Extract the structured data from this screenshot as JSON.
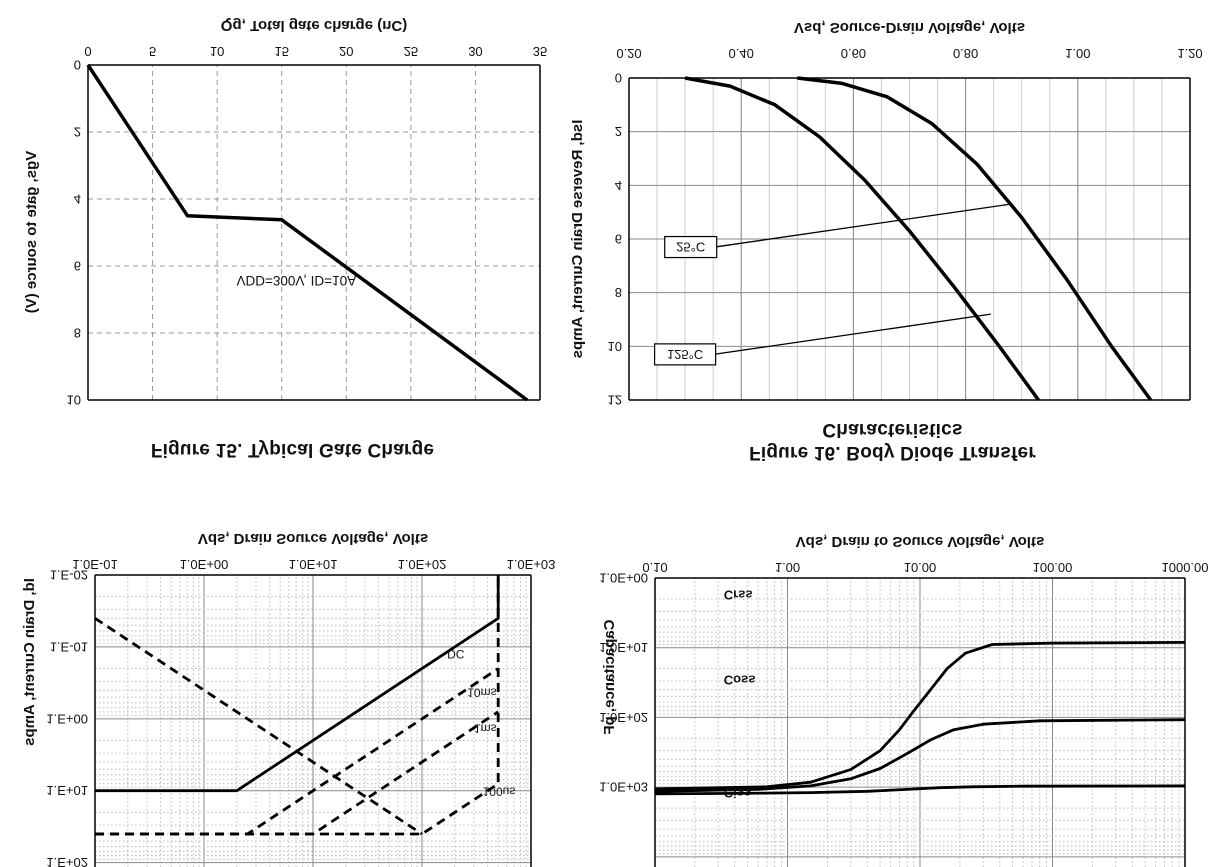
{
  "chart_data": [
    {
      "id": "soa",
      "type": "line",
      "xlabel": "Vds, Drain Source Voltage, Volts",
      "ylabel": "Id, Drain Current, Amps",
      "x_scale": "log",
      "y_scale": "log",
      "x_range": [
        0.1,
        1000
      ],
      "y_range": [
        0.01,
        115
      ],
      "x_ticks": [
        {
          "v": 0.1,
          "label": "1.0E-01"
        },
        {
          "v": 1,
          "label": "1.0E+00"
        },
        {
          "v": 10,
          "label": "1.0E+01"
        },
        {
          "v": 100,
          "label": "1.0E+02"
        },
        {
          "v": 1000,
          "label": "1.0E+03"
        }
      ],
      "y_ticks": [
        {
          "v": 0.01,
          "label": "1.E-02"
        },
        {
          "v": 0.1,
          "label": "1.E-01"
        },
        {
          "v": 1,
          "label": "1.E+00"
        },
        {
          "v": 10,
          "label": "1.E+01"
        },
        {
          "v": 100,
          "label": "1.E+02"
        }
      ],
      "clipped_top": true,
      "series": [
        {
          "name": "DC",
          "dash": false,
          "points": [
            [
              0.1,
              10
            ],
            [
              2,
              10
            ],
            [
              500,
              0.04
            ],
            [
              500,
              0.01
            ]
          ]
        },
        {
          "name": "10ms",
          "dash": true,
          "points": [
            [
              0.1,
              40
            ],
            [
              2.5,
              40
            ],
            [
              500,
              0.2
            ]
          ]
        },
        {
          "name": "1ms",
          "dash": true,
          "points": [
            [
              0.1,
              40
            ],
            [
              10,
              40
            ],
            [
              500,
              0.8
            ]
          ]
        },
        {
          "name": "100us",
          "dash": true,
          "points": [
            [
              0.1,
              40
            ],
            [
              100,
              40
            ],
            [
              500,
              8
            ],
            [
              500,
              0.01
            ]
          ]
        },
        {
          "name": "rdson-limit",
          "dash": true,
          "points": [
            [
              0.1,
              0.04
            ],
            [
              100,
              40
            ]
          ]
        }
      ],
      "labels": [
        {
          "text": "DC",
          "x": 170,
          "y": 0.11,
          "size": 12
        },
        {
          "text": "10ms",
          "x": 260,
          "y": 0.38,
          "size": 12
        },
        {
          "text": "1ms",
          "x": 300,
          "y": 1.2,
          "size": 12
        },
        {
          "text": "100us",
          "x": 360,
          "y": 9,
          "size": 12
        }
      ]
    },
    {
      "id": "cap",
      "type": "line",
      "xlabel": "Vds, Drain to Source Voltage, Volts",
      "ylabel": "Capacitance, pF",
      "x_scale": "log",
      "y_scale": "log",
      "x_range": [
        0.1,
        1000
      ],
      "y_range": [
        1,
        14000
      ],
      "x_ticks": [
        {
          "v": 0.1,
          "label": "0.10"
        },
        {
          "v": 1,
          "label": "1.00"
        },
        {
          "v": 10,
          "label": "10.00"
        },
        {
          "v": 100,
          "label": "100.00"
        },
        {
          "v": 1000,
          "label": "1000.00"
        }
      ],
      "y_ticks": [
        {
          "v": 1,
          "label": "1.0E+00"
        },
        {
          "v": 10,
          "label": "1.0E+01"
        },
        {
          "v": 100,
          "label": "1.0E+02"
        },
        {
          "v": 1000,
          "label": "1.0E+03"
        }
      ],
      "clipped_top": true,
      "series": [
        {
          "name": "Ciss",
          "dash": false,
          "points": [
            [
              0.1,
              1250
            ],
            [
              0.4,
              1230
            ],
            [
              1.5,
              1200
            ],
            [
              4,
              1150
            ],
            [
              8,
              1080
            ],
            [
              14,
              1020
            ],
            [
              25,
              990
            ],
            [
              60,
              970
            ],
            [
              1000,
              960
            ]
          ]
        },
        {
          "name": "Coss",
          "dash": false,
          "points": [
            [
              0.1,
              1150
            ],
            [
              0.6,
              1080
            ],
            [
              1.5,
              960
            ],
            [
              3,
              760
            ],
            [
              5,
              540
            ],
            [
              8,
              330
            ],
            [
              12,
              210
            ],
            [
              18,
              150
            ],
            [
              30,
              125
            ],
            [
              80,
              112
            ],
            [
              1000,
              108
            ]
          ]
        },
        {
          "name": "Crss",
          "dash": false,
          "points": [
            [
              0.1,
              1060
            ],
            [
              0.7,
              990
            ],
            [
              1.5,
              850
            ],
            [
              3,
              560
            ],
            [
              5,
              300
            ],
            [
              7,
              150
            ],
            [
              9,
              80
            ],
            [
              12,
              40
            ],
            [
              16,
              20
            ],
            [
              22,
              12
            ],
            [
              35,
              9
            ],
            [
              100,
              8.6
            ],
            [
              1000,
              8.4
            ]
          ]
        }
      ],
      "labels": [
        {
          "text": "Crss",
          "x": 0.33,
          "y": 1.5,
          "size": 13,
          "bold": true
        },
        {
          "text": "Coss",
          "x": 0.33,
          "y": 25,
          "size": 13,
          "bold": true
        },
        {
          "text": "Ciss",
          "x": 0.33,
          "y": 1050,
          "size": 13,
          "bold": true
        }
      ]
    },
    {
      "id": "gate",
      "type": "line",
      "caption": "Figure 15. Typical Gate Charge",
      "xlabel": "Qg, Total gate charge (nC)",
      "ylabel": "Vgs, gate to source (V)",
      "x_scale": "linear",
      "y_scale": "linear",
      "x_range": [
        0,
        35
      ],
      "y_range": [
        0,
        10
      ],
      "x_ticks": [
        {
          "v": 0,
          "label": "0"
        },
        {
          "v": 5,
          "label": "5"
        },
        {
          "v": 10,
          "label": "10"
        },
        {
          "v": 15,
          "label": "15"
        },
        {
          "v": 20,
          "label": "20"
        },
        {
          "v": 25,
          "label": "25"
        },
        {
          "v": 30,
          "label": "30"
        },
        {
          "v": 35,
          "label": "35"
        }
      ],
      "y_ticks": [
        {
          "v": 0,
          "label": "0"
        },
        {
          "v": 2,
          "label": "2"
        },
        {
          "v": 4,
          "label": "4"
        },
        {
          "v": 6,
          "label": "6"
        },
        {
          "v": 8,
          "label": "8"
        },
        {
          "v": 10,
          "label": "10"
        }
      ],
      "series": [
        {
          "name": "gate-charge-typ",
          "dash": false,
          "points": [
            [
              0,
              0
            ],
            [
              7.7,
              4.5
            ],
            [
              15,
              4.62
            ],
            [
              34,
              10
            ]
          ]
        }
      ],
      "labels": [
        {
          "text": "VDD=300V, ID=10A",
          "x": 11.5,
          "y": 6.3,
          "size": 13.5
        }
      ]
    },
    {
      "id": "diode",
      "type": "line",
      "caption_line1": "Figure 16. Body Diode Transfer",
      "caption_line2": "Characteristics",
      "xlabel": "Vsd, Source-Drain Voltage, Volts",
      "ylabel": "Isd, Reverse Drain Current, Amps",
      "x_scale": "linear",
      "y_scale": "linear",
      "x_range": [
        0.2,
        1.2
      ],
      "y_range": [
        0,
        12
      ],
      "x_ticks": [
        {
          "v": 0.2,
          "label": "0.20"
        },
        {
          "v": 0.4,
          "label": "0.40"
        },
        {
          "v": 0.6,
          "label": "0.60"
        },
        {
          "v": 0.8,
          "label": "0.80"
        },
        {
          "v": 1.0,
          "label": "1.00"
        },
        {
          "v": 1.2,
          "label": "1.20"
        }
      ],
      "y_ticks": [
        {
          "v": 0,
          "label": "0"
        },
        {
          "v": 2,
          "label": "2"
        },
        {
          "v": 4,
          "label": "4"
        },
        {
          "v": 6,
          "label": "6"
        },
        {
          "v": 8,
          "label": "8"
        },
        {
          "v": 10,
          "label": "10"
        },
        {
          "v": 12,
          "label": "12"
        }
      ],
      "series": [
        {
          "name": "25°C",
          "dash": false,
          "points": [
            [
              0.5,
              0
            ],
            [
              0.58,
              0.2
            ],
            [
              0.66,
              0.7
            ],
            [
              0.74,
              1.7
            ],
            [
              0.82,
              3.2
            ],
            [
              0.9,
              5.2
            ],
            [
              0.98,
              7.5
            ],
            [
              1.06,
              10.0
            ],
            [
              1.13,
              12
            ]
          ]
        },
        {
          "name": "125°C",
          "dash": false,
          "points": [
            [
              0.3,
              0
            ],
            [
              0.38,
              0.3
            ],
            [
              0.46,
              1.0
            ],
            [
              0.54,
              2.2
            ],
            [
              0.62,
              3.8
            ],
            [
              0.7,
              5.7
            ],
            [
              0.78,
              7.8
            ],
            [
              0.86,
              10.0
            ],
            [
              0.93,
              12
            ]
          ]
        }
      ],
      "labels": [
        {
          "text": "25°C",
          "x": 0.31,
          "y": 6.3,
          "box": true,
          "tx": 0.88,
          "ty": 4.7
        },
        {
          "text": "125°C",
          "x": 0.3,
          "y": 10.3,
          "box": true,
          "tx": 0.845,
          "ty": 8.8
        }
      ]
    }
  ]
}
